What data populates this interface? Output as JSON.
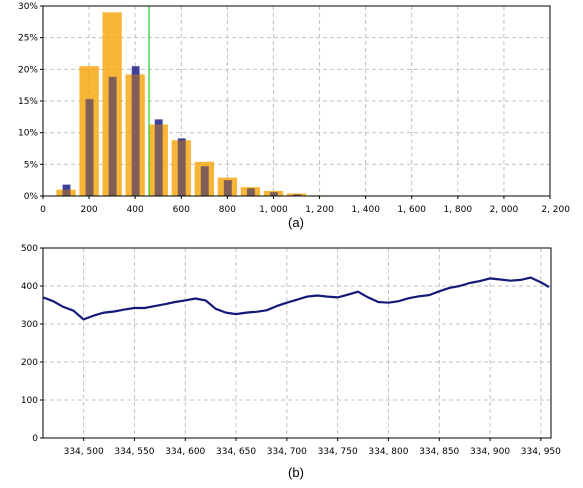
{
  "colors": {
    "orange": "#f5a200",
    "blue": "#2b2d8f",
    "marker": "#22cc22",
    "line": "#141a78"
  },
  "chart_data": [
    {
      "type": "bar",
      "caption": "(a)",
      "xlim": [
        0,
        2200
      ],
      "ylim": [
        0,
        30
      ],
      "x_ticks": [
        0,
        200,
        400,
        600,
        800,
        1000,
        1200,
        1400,
        1600,
        1800,
        2000,
        2200
      ],
      "x_tick_labels": [
        "0",
        "200",
        "400",
        "600",
        "800",
        "1, 000",
        "1, 200",
        "1, 400",
        "1, 600",
        "1, 800",
        "2, 000",
        "2, 200"
      ],
      "y_ticks": [
        0,
        5,
        10,
        15,
        20,
        25,
        30
      ],
      "y_tick_labels": [
        "0%",
        "5%",
        "10%",
        "15%",
        "20%",
        "25%",
        "30%"
      ],
      "bin_centers": [
        100,
        200,
        300,
        400,
        500,
        600,
        700,
        800,
        900,
        1000,
        1100,
        1200
      ],
      "series": [
        {
          "color": "orange",
          "values": [
            1.0,
            20.5,
            29.0,
            19.2,
            11.3,
            8.8,
            5.4,
            2.9,
            1.4,
            0.8,
            0.4,
            0.1
          ]
        },
        {
          "color": "blue",
          "values": [
            1.8,
            15.3,
            18.8,
            20.5,
            12.1,
            9.1,
            4.7,
            2.5,
            1.2,
            0.6,
            0.25,
            0.05
          ]
        }
      ],
      "marker_x": 460,
      "grid": true
    },
    {
      "type": "line",
      "caption": "(b)",
      "xlim": [
        334460,
        334960
      ],
      "ylim": [
        0,
        500
      ],
      "x_ticks": [
        334500,
        334550,
        334600,
        334650,
        334700,
        334750,
        334800,
        334850,
        334900,
        334950
      ],
      "x_tick_labels": [
        "334, 500",
        "334, 550",
        "334, 600",
        "334, 650",
        "334, 700",
        "334, 750",
        "334, 800",
        "334, 850",
        "334, 900",
        "334, 950"
      ],
      "y_ticks": [
        0,
        100,
        200,
        300,
        400,
        500
      ],
      "y_tick_labels": [
        "0",
        "100",
        "200",
        "300",
        "400",
        "500"
      ],
      "x": [
        334460,
        334470,
        334480,
        334490,
        334500,
        334510,
        334520,
        334530,
        334540,
        334550,
        334560,
        334570,
        334580,
        334590,
        334600,
        334610,
        334620,
        334630,
        334640,
        334650,
        334660,
        334670,
        334680,
        334690,
        334700,
        334710,
        334720,
        334730,
        334740,
        334750,
        334760,
        334770,
        334780,
        334790,
        334800,
        334810,
        334820,
        334830,
        334840,
        334850,
        334860,
        334870,
        334880,
        334890,
        334900,
        334910,
        334920,
        334930,
        334940,
        334950,
        334958
      ],
      "y": [
        370,
        360,
        345,
        335,
        312,
        322,
        330,
        333,
        338,
        342,
        342,
        347,
        352,
        358,
        362,
        367,
        362,
        340,
        330,
        326,
        330,
        332,
        336,
        347,
        356,
        364,
        372,
        375,
        372,
        370,
        377,
        385,
        370,
        358,
        356,
        360,
        368,
        373,
        376,
        386,
        395,
        400,
        408,
        413,
        420,
        417,
        414,
        416,
        422,
        410,
        397
      ],
      "grid": true
    }
  ]
}
